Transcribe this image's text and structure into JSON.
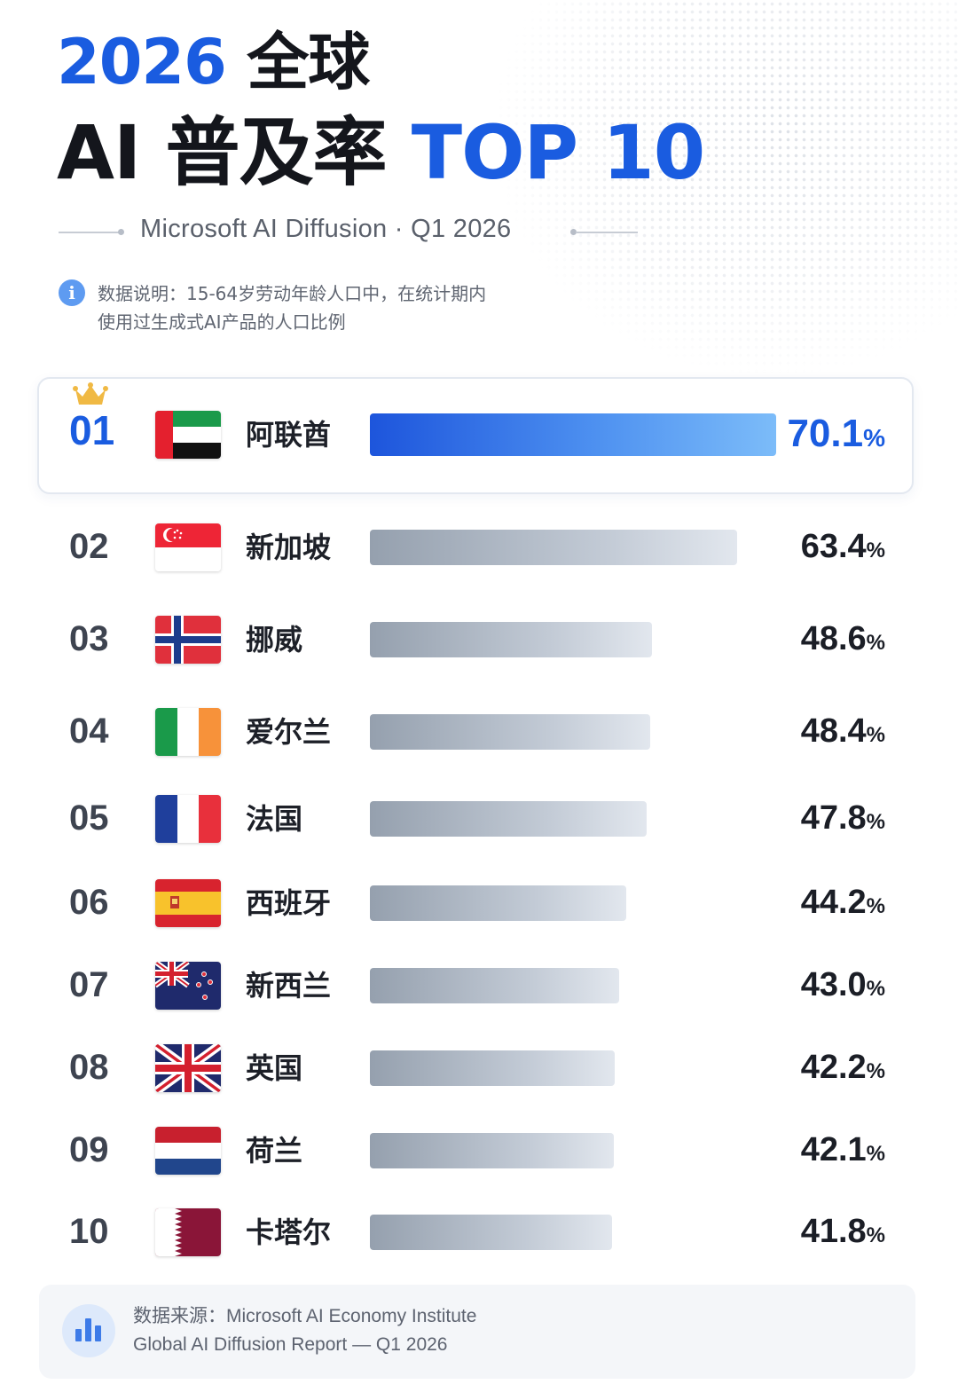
{
  "header": {
    "title_year": "2026",
    "title_global": "全球",
    "title_ai": "AI",
    "title_rate": "普及率",
    "title_top": "TOP 10",
    "subtitle": "Microsoft AI Diffusion · Q1 2026"
  },
  "note": {
    "icon": "info-icon",
    "line1": "数据说明：15-64岁劳动年龄人口中，在统计期内",
    "line2": "使用过生成式AI产品的人口比例"
  },
  "chart_data": {
    "type": "bar",
    "orientation": "horizontal",
    "unit": "%",
    "xlim": [
      0,
      70.1
    ],
    "rows": [
      {
        "rank": "01",
        "country": "阿联酋",
        "value": 70.1,
        "value_text": "70.1",
        "flag": "uae"
      },
      {
        "rank": "02",
        "country": "新加坡",
        "value": 63.4,
        "value_text": "63.4",
        "flag": "singapore"
      },
      {
        "rank": "03",
        "country": "挪威",
        "value": 48.6,
        "value_text": "48.6",
        "flag": "norway"
      },
      {
        "rank": "04",
        "country": "爱尔兰",
        "value": 48.4,
        "value_text": "48.4",
        "flag": "ireland"
      },
      {
        "rank": "05",
        "country": "法国",
        "value": 47.8,
        "value_text": "47.8",
        "flag": "france"
      },
      {
        "rank": "06",
        "country": "西班牙",
        "value": 44.2,
        "value_text": "44.2",
        "flag": "spain"
      },
      {
        "rank": "07",
        "country": "新西兰",
        "value": 43.0,
        "value_text": "43.0",
        "flag": "new-zealand"
      },
      {
        "rank": "08",
        "country": "英国",
        "value": 42.2,
        "value_text": "42.2",
        "flag": "uk"
      },
      {
        "rank": "09",
        "country": "荷兰",
        "value": 42.1,
        "value_text": "42.1",
        "flag": "netherlands"
      },
      {
        "rank": "10",
        "country": "卡塔尔",
        "value": 41.8,
        "value_text": "41.8",
        "flag": "qatar"
      }
    ],
    "highlight_rank": "01",
    "highlight_icon": "crown-icon",
    "colors": {
      "highlight": "#1a5ce0",
      "bar": "#aab3bf",
      "highlight_bar": "#4d90f0"
    }
  },
  "source": {
    "icon": "bar-chart-icon",
    "line1": "数据来源：Microsoft AI Economy Institute",
    "line2": "Global AI Diffusion Report — Q1 2026"
  }
}
